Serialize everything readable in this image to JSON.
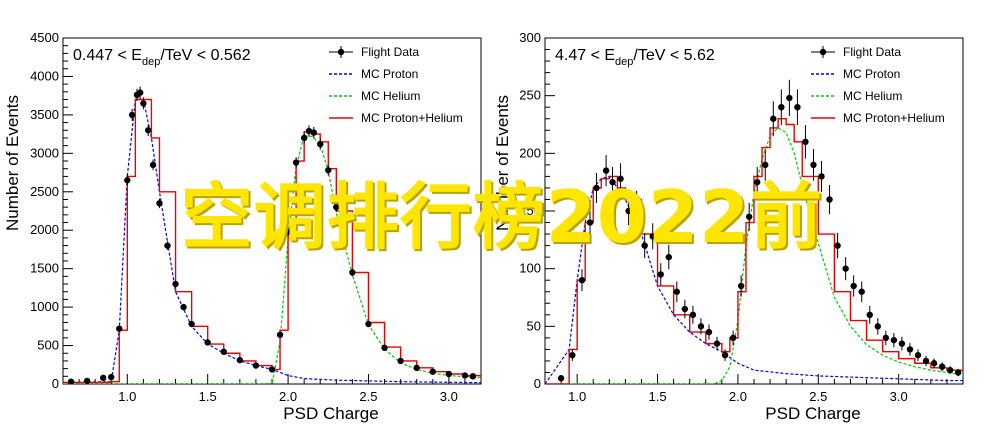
{
  "overlay_text": "空调排行榜2022前",
  "colors": {
    "flight": "#000000",
    "proton": "#0000ee",
    "helium": "#00cc00",
    "sum": "#ee0000"
  },
  "chart_data": [
    {
      "type": "line",
      "title_parts": [
        "0.447 < E",
        "dep",
        "/TeV < 0.562"
      ],
      "xlabel": "PSD Charge",
      "ylabel": "Number of Events",
      "xlim": [
        0.6,
        3.2
      ],
      "ylim": [
        0,
        4500
      ],
      "xticks": [
        1.0,
        1.5,
        2.0,
        2.5,
        3.0
      ],
      "yticks": [
        0,
        500,
        1000,
        1500,
        2000,
        2500,
        3000,
        3500,
        4000,
        4500
      ],
      "legend": [
        "Flight Data",
        "MC Proton",
        "MC Helium",
        "MC Proton+Helium"
      ],
      "legend_position": "top-right",
      "series": [
        {
          "name": "MC Proton+Helium",
          "style": "step",
          "x": [
            0.6,
            0.9,
            0.95,
            1.0,
            1.05,
            1.1,
            1.15,
            1.2,
            1.3,
            1.4,
            1.5,
            1.6,
            1.7,
            1.8,
            1.9,
            1.95,
            2.0,
            2.05,
            2.1,
            2.15,
            2.2,
            2.25,
            2.3,
            2.4,
            2.5,
            2.6,
            2.7,
            2.8,
            2.9,
            3.0,
            3.1,
            3.2
          ],
          "y": [
            20,
            30,
            700,
            2700,
            3700,
            3700,
            3200,
            2500,
            1200,
            750,
            520,
            400,
            300,
            240,
            190,
            700,
            2000,
            2900,
            3280,
            3250,
            3150,
            2800,
            2250,
            1450,
            800,
            480,
            300,
            210,
            160,
            130,
            110,
            100
          ]
        },
        {
          "name": "MC Proton",
          "style": "dashed",
          "x": [
            0.6,
            0.9,
            0.95,
            1.0,
            1.05,
            1.1,
            1.15,
            1.2,
            1.3,
            1.4,
            1.5,
            1.6,
            1.7,
            1.8,
            1.9,
            1.95,
            2.0,
            2.1,
            2.3,
            2.5,
            2.7,
            2.9,
            3.1,
            3.2
          ],
          "y": [
            20,
            30,
            700,
            2700,
            3700,
            3700,
            3200,
            2500,
            1200,
            750,
            520,
            400,
            300,
            240,
            190,
            150,
            110,
            70,
            50,
            40,
            30,
            25,
            20,
            18
          ]
        },
        {
          "name": "MC Helium",
          "style": "dashed",
          "x": [
            0.6,
            1.8,
            1.9,
            1.95,
            2.0,
            2.05,
            2.1,
            2.15,
            2.2,
            2.25,
            2.3,
            2.4,
            2.5,
            2.6,
            2.7,
            2.8,
            2.9,
            3.0,
            3.1,
            3.2
          ],
          "y": [
            0,
            0,
            5,
            550,
            1890,
            2830,
            3230,
            3220,
            3120,
            2770,
            2220,
            1420,
            770,
            455,
            275,
            190,
            140,
            110,
            95,
            85
          ]
        },
        {
          "name": "Flight Data",
          "style": "points",
          "x": [
            0.65,
            0.75,
            0.85,
            0.9,
            0.95,
            1.0,
            1.03,
            1.06,
            1.08,
            1.1,
            1.13,
            1.16,
            1.2,
            1.25,
            1.3,
            1.35,
            1.4,
            1.5,
            1.6,
            1.7,
            1.8,
            1.9,
            1.95,
            2.0,
            2.05,
            2.1,
            2.13,
            2.16,
            2.2,
            2.25,
            2.3,
            2.35,
            2.4,
            2.5,
            2.6,
            2.7,
            2.8,
            2.9,
            3.0,
            3.1,
            3.15
          ],
          "y": [
            30,
            40,
            80,
            90,
            720,
            2650,
            3500,
            3760,
            3790,
            3650,
            3300,
            2850,
            2350,
            1800,
            1300,
            1000,
            780,
            540,
            420,
            310,
            240,
            190,
            640,
            1980,
            2880,
            3200,
            3290,
            3270,
            3120,
            2780,
            2300,
            1900,
            1450,
            780,
            470,
            300,
            210,
            160,
            130,
            110,
            100
          ]
        }
      ]
    },
    {
      "type": "line",
      "title_parts": [
        "4.47 < E",
        "dep",
        "/TeV < 5.62"
      ],
      "xlabel": "PSD Charge",
      "ylabel": "Number of Events",
      "xlim": [
        0.8,
        3.4
      ],
      "ylim": [
        0,
        300
      ],
      "xticks": [
        1.0,
        1.5,
        2.0,
        2.5,
        3.0
      ],
      "yticks": [
        0,
        50,
        100,
        150,
        200,
        250,
        300
      ],
      "legend": [
        "Flight Data",
        "MC Proton",
        "MC Helium",
        "MC Proton+Helium"
      ],
      "legend_position": "top-right",
      "series": [
        {
          "name": "MC Proton+Helium",
          "style": "step",
          "x": [
            0.8,
            0.95,
            1.0,
            1.05,
            1.1,
            1.15,
            1.2,
            1.25,
            1.3,
            1.4,
            1.5,
            1.6,
            1.7,
            1.8,
            1.9,
            1.95,
            2.0,
            2.05,
            2.1,
            2.15,
            2.2,
            2.25,
            2.3,
            2.35,
            2.4,
            2.5,
            2.6,
            2.7,
            2.8,
            2.9,
            3.0,
            3.1,
            3.2,
            3.3,
            3.4
          ],
          "y": [
            0,
            30,
            90,
            140,
            170,
            178,
            180,
            170,
            160,
            130,
            85,
            60,
            45,
            35,
            28,
            40,
            80,
            140,
            180,
            205,
            222,
            230,
            225,
            210,
            180,
            130,
            80,
            55,
            38,
            28,
            22,
            18,
            14,
            12,
            10
          ]
        },
        {
          "name": "MC Proton",
          "style": "dashed",
          "x": [
            0.8,
            0.95,
            1.0,
            1.05,
            1.1,
            1.15,
            1.2,
            1.25,
            1.3,
            1.4,
            1.5,
            1.6,
            1.7,
            1.8,
            1.9,
            2.0,
            2.1,
            2.3,
            2.5,
            2.7,
            2.9,
            3.1,
            3.3,
            3.4
          ],
          "y": [
            0,
            30,
            90,
            140,
            170,
            178,
            180,
            170,
            160,
            130,
            85,
            60,
            45,
            35,
            28,
            18,
            12,
            9,
            7,
            6,
            5,
            4,
            3,
            3
          ]
        },
        {
          "name": "MC Helium",
          "style": "dashed",
          "x": [
            0.8,
            1.85,
            1.9,
            1.95,
            2.0,
            2.05,
            2.1,
            2.15,
            2.2,
            2.25,
            2.3,
            2.35,
            2.4,
            2.5,
            2.6,
            2.7,
            2.8,
            2.9,
            3.0,
            3.1,
            3.2,
            3.3,
            3.4
          ],
          "y": [
            0,
            0,
            3,
            15,
            55,
            120,
            165,
            195,
            215,
            222,
            218,
            200,
            172,
            122,
            75,
            50,
            34,
            25,
            19,
            15,
            12,
            10,
            8
          ]
        },
        {
          "name": "Flight Data",
          "style": "points",
          "x": [
            0.9,
            0.97,
            1.03,
            1.08,
            1.12,
            1.18,
            1.22,
            1.27,
            1.32,
            1.37,
            1.42,
            1.47,
            1.52,
            1.57,
            1.62,
            1.67,
            1.72,
            1.77,
            1.82,
            1.87,
            1.92,
            1.97,
            2.02,
            2.07,
            2.12,
            2.17,
            2.22,
            2.27,
            2.32,
            2.37,
            2.42,
            2.47,
            2.52,
            2.57,
            2.62,
            2.67,
            2.72,
            2.77,
            2.82,
            2.87,
            2.92,
            2.97,
            3.02,
            3.07,
            3.12,
            3.17,
            3.22,
            3.27,
            3.32,
            3.37
          ],
          "y": [
            5,
            25,
            90,
            140,
            170,
            185,
            175,
            178,
            150,
            155,
            120,
            128,
            95,
            110,
            80,
            65,
            60,
            50,
            45,
            35,
            25,
            40,
            85,
            145,
            175,
            190,
            230,
            240,
            248,
            240,
            210,
            190,
            180,
            160,
            120,
            100,
            85,
            80,
            60,
            50,
            40,
            38,
            35,
            30,
            25,
            20,
            18,
            15,
            12,
            10
          ]
        }
      ]
    }
  ]
}
